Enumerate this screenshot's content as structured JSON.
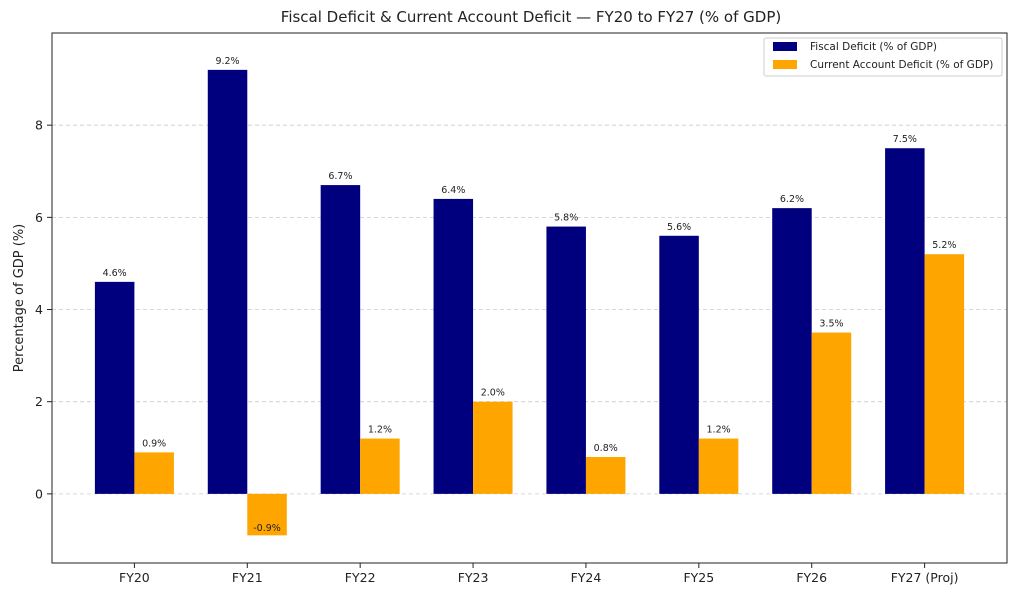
{
  "chart_data": {
    "type": "bar",
    "title": "Fiscal Deficit & Current Account Deficit — FY20 to FY27 (% of GDP)",
    "xlabel": "",
    "ylabel": "Percentage of GDP (%)",
    "ylim": [
      -1.5,
      10.0
    ],
    "yticks": [
      0,
      2,
      4,
      6,
      8
    ],
    "grid": true,
    "legend_position": "top-right",
    "categories": [
      "FY20",
      "FY21",
      "FY22",
      "FY23",
      "FY24",
      "FY25",
      "FY26",
      "FY27 (Proj)"
    ],
    "series": [
      {
        "name": "Fiscal Deficit (% of GDP)",
        "color": "#00007f",
        "values": [
          4.6,
          9.2,
          6.7,
          6.4,
          5.8,
          5.6,
          6.2,
          7.5
        ],
        "labels": [
          "4.6%",
          "9.2%",
          "6.7%",
          "6.4%",
          "5.8%",
          "5.6%",
          "6.2%",
          "7.5%"
        ]
      },
      {
        "name": "Current Account Deficit (% of GDP)",
        "color": "#ffa500",
        "values": [
          0.9,
          -0.9,
          1.2,
          2.0,
          0.8,
          1.2,
          3.5,
          5.2
        ],
        "labels": [
          "0.9%",
          "-0.9%",
          "1.2%",
          "2.0%",
          "0.8%",
          "1.2%",
          "3.5%",
          "5.2%"
        ]
      }
    ]
  }
}
